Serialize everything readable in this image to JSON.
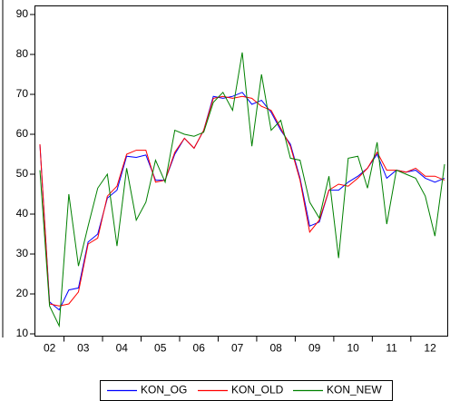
{
  "chart_data": {
    "type": "line",
    "categories": [
      "02",
      null,
      null,
      "03",
      null,
      null,
      null,
      "04",
      null,
      null,
      null,
      "05",
      null,
      null,
      null,
      "06",
      null,
      null,
      null,
      "07",
      null,
      null,
      null,
      "08",
      null,
      null,
      null,
      "09",
      null,
      null,
      null,
      "10",
      null,
      null,
      null,
      "11",
      null,
      null,
      null,
      "12",
      null,
      null,
      null
    ],
    "series": [
      {
        "name": "KON_OG",
        "color": "#0000ff",
        "values": [
          57.5,
          18,
          16,
          21,
          21.5,
          33,
          35,
          44,
          46,
          54.5,
          54.2,
          54.8,
          48.5,
          48.5,
          55,
          59,
          56.5,
          61,
          69.5,
          69,
          69.5,
          70.5,
          67.5,
          68.5,
          65.5,
          61,
          57.5,
          49,
          37,
          38,
          46,
          46,
          48,
          49.5,
          51.5,
          55,
          49,
          51,
          50.5,
          51,
          49,
          48,
          49
        ]
      },
      {
        "name": "KON_OLD",
        "color": "#ff0000",
        "values": [
          57.5,
          17.5,
          17,
          17.5,
          20.5,
          32.5,
          34,
          44.5,
          47,
          55,
          56,
          56,
          48,
          48.5,
          55.5,
          59,
          56.5,
          61,
          69,
          69.5,
          69,
          69.5,
          69,
          67,
          66,
          61.5,
          57,
          48.5,
          35.5,
          38.5,
          46,
          47.5,
          47,
          49,
          51.5,
          55.5,
          51,
          51,
          50.5,
          51.5,
          49.5,
          49.5,
          48.5
        ]
      },
      {
        "name": "KON_NEW",
        "color": "#008000",
        "values": [
          51,
          17,
          12,
          45,
          27,
          37,
          46.5,
          50,
          32,
          51.5,
          38.5,
          43,
          53.5,
          48,
          61,
          60,
          59.5,
          60.5,
          68,
          70.5,
          66,
          80.5,
          57,
          75,
          61,
          63.5,
          54,
          53.5,
          43,
          39,
          49.5,
          29,
          54,
          54.5,
          46.5,
          58,
          37.5,
          51,
          50,
          49,
          44.5,
          34.5,
          52.5
        ]
      }
    ],
    "ylim": [
      10,
      90
    ],
    "yticks": [
      10,
      20,
      30,
      40,
      50,
      60,
      70,
      80,
      90
    ]
  }
}
